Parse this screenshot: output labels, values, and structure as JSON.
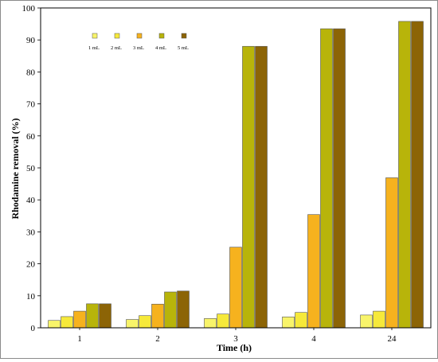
{
  "chart_data": {
    "type": "bar",
    "title": "",
    "xlabel": "Time (h)",
    "ylabel": "Rhodamine removal (%)",
    "categories": [
      "1",
      "2",
      "3",
      "4",
      "24"
    ],
    "ylim": [
      0,
      100
    ],
    "yticks": [
      0,
      10,
      20,
      30,
      40,
      50,
      60,
      70,
      80,
      90,
      100
    ],
    "grid": false,
    "legend_position": "top-left",
    "series": [
      {
        "name": "1 mL",
        "color": "#f8f46a",
        "values": [
          2.3,
          2.6,
          2.9,
          3.4,
          4.0
        ]
      },
      {
        "name": "2 mL",
        "color": "#f6e93a",
        "values": [
          3.5,
          3.8,
          4.3,
          4.8,
          5.2
        ]
      },
      {
        "name": "3 mL",
        "color": "#f6b21e",
        "values": [
          5.2,
          7.4,
          25.2,
          35.4,
          46.9
        ]
      },
      {
        "name": "4 mL",
        "color": "#b8b40a",
        "values": [
          7.5,
          11.2,
          88.0,
          93.5,
          95.8
        ]
      },
      {
        "name": "5 mL",
        "color": "#8c6406",
        "values": [
          7.5,
          11.5,
          88.0,
          93.5,
          95.8
        ]
      }
    ]
  }
}
